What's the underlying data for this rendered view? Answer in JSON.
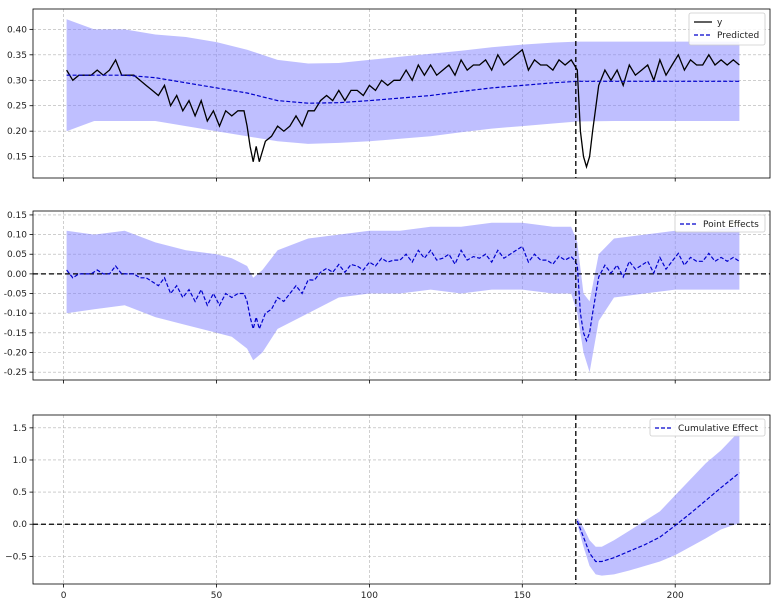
{
  "colors": {
    "band": "#8080ff",
    "band_opacity": 0.5,
    "observed": "#000000",
    "predicted": "#0000cc",
    "event_line": "#000000",
    "grid": "#b0b0b0"
  },
  "chart_data": [
    {
      "type": "line",
      "panel": "original",
      "xlim": [
        -10,
        231
      ],
      "ylim": [
        0.108,
        0.44
      ],
      "xticks": [
        0,
        50,
        100,
        150,
        200
      ],
      "xtick_labels": [],
      "yticks": [
        0.15,
        0.2,
        0.25,
        0.3,
        0.35,
        0.4
      ],
      "ytick_labels": [
        "0.15",
        "0.20",
        "0.25",
        "0.30",
        "0.35",
        "0.40"
      ],
      "grid": true,
      "legend_position": "top-right",
      "event_x": 167.5,
      "zero_line": false,
      "series": [
        {
          "name": "y",
          "style": "solid",
          "x": [
            1,
            3,
            5,
            7,
            9,
            11,
            13,
            15,
            17,
            19,
            21,
            23,
            25,
            27,
            29,
            31,
            33,
            35,
            37,
            39,
            41,
            43,
            45,
            47,
            49,
            51,
            53,
            55,
            57,
            59,
            60,
            61,
            62,
            63,
            64,
            66,
            68,
            70,
            72,
            74,
            76,
            78,
            80,
            82,
            84,
            86,
            88,
            90,
            92,
            94,
            96,
            98,
            100,
            102,
            104,
            106,
            108,
            110,
            112,
            114,
            116,
            118,
            120,
            122,
            124,
            126,
            128,
            130,
            132,
            134,
            136,
            138,
            140,
            142,
            144,
            146,
            148,
            150,
            152,
            154,
            156,
            158,
            160,
            162,
            164,
            166,
            167,
            168,
            169,
            170,
            171,
            172,
            173,
            175,
            177,
            179,
            181,
            183,
            185,
            187,
            189,
            191,
            193,
            195,
            197,
            199,
            201,
            203,
            205,
            207,
            209,
            211,
            213,
            215,
            217,
            219,
            221
          ],
          "y": [
            0.32,
            0.3,
            0.31,
            0.31,
            0.31,
            0.32,
            0.31,
            0.32,
            0.34,
            0.31,
            0.31,
            0.31,
            0.3,
            0.29,
            0.28,
            0.27,
            0.29,
            0.25,
            0.27,
            0.24,
            0.26,
            0.23,
            0.26,
            0.22,
            0.24,
            0.21,
            0.24,
            0.23,
            0.24,
            0.24,
            0.21,
            0.17,
            0.14,
            0.17,
            0.14,
            0.18,
            0.19,
            0.21,
            0.2,
            0.21,
            0.23,
            0.21,
            0.24,
            0.24,
            0.26,
            0.27,
            0.26,
            0.28,
            0.26,
            0.28,
            0.28,
            0.27,
            0.29,
            0.28,
            0.3,
            0.29,
            0.3,
            0.3,
            0.32,
            0.3,
            0.33,
            0.31,
            0.33,
            0.31,
            0.32,
            0.33,
            0.31,
            0.34,
            0.32,
            0.33,
            0.33,
            0.34,
            0.32,
            0.35,
            0.33,
            0.34,
            0.35,
            0.36,
            0.32,
            0.34,
            0.33,
            0.33,
            0.32,
            0.34,
            0.33,
            0.34,
            0.33,
            0.32,
            0.2,
            0.15,
            0.13,
            0.15,
            0.2,
            0.29,
            0.32,
            0.3,
            0.32,
            0.29,
            0.33,
            0.31,
            0.32,
            0.33,
            0.3,
            0.34,
            0.31,
            0.33,
            0.35,
            0.32,
            0.34,
            0.33,
            0.33,
            0.35,
            0.33,
            0.34,
            0.33,
            0.34,
            0.33
          ]
        },
        {
          "name": "Predicted",
          "style": "dashed",
          "x": [
            1,
            10,
            20,
            30,
            40,
            50,
            60,
            70,
            80,
            90,
            100,
            110,
            120,
            130,
            140,
            150,
            160,
            168,
            180,
            200,
            221
          ],
          "y": [
            0.31,
            0.31,
            0.31,
            0.305,
            0.295,
            0.285,
            0.275,
            0.26,
            0.255,
            0.256,
            0.26,
            0.265,
            0.27,
            0.278,
            0.285,
            0.29,
            0.295,
            0.298,
            0.298,
            0.298,
            0.298
          ]
        }
      ],
      "band": {
        "x": [
          1,
          10,
          20,
          30,
          40,
          50,
          60,
          70,
          80,
          90,
          100,
          110,
          120,
          130,
          140,
          150,
          160,
          168,
          180,
          200,
          221
        ],
        "upper": [
          0.42,
          0.4,
          0.4,
          0.39,
          0.385,
          0.375,
          0.36,
          0.34,
          0.333,
          0.334,
          0.34,
          0.346,
          0.352,
          0.358,
          0.365,
          0.37,
          0.374,
          0.376,
          0.376,
          0.376,
          0.376
        ],
        "lower": [
          0.2,
          0.22,
          0.22,
          0.22,
          0.21,
          0.2,
          0.19,
          0.18,
          0.175,
          0.177,
          0.18,
          0.185,
          0.19,
          0.198,
          0.205,
          0.21,
          0.215,
          0.219,
          0.22,
          0.22,
          0.22
        ]
      }
    },
    {
      "type": "line",
      "panel": "pointwise",
      "xlim": [
        -10,
        231
      ],
      "ylim": [
        -0.27,
        0.16
      ],
      "xticks": [
        0,
        50,
        100,
        150,
        200
      ],
      "xtick_labels": [],
      "yticks": [
        -0.25,
        -0.2,
        -0.15,
        -0.1,
        -0.05,
        0.0,
        0.05,
        0.1,
        0.15
      ],
      "ytick_labels": [
        "-0.25",
        "-0.20",
        "-0.15",
        "-0.10",
        "-0.05",
        "0.00",
        "0.05",
        "0.10",
        "0.15"
      ],
      "grid": true,
      "legend_position": "top-right",
      "event_x": 167.5,
      "zero_line": true,
      "series": [
        {
          "name": "Point Effects",
          "style": "dashed",
          "x": [
            1,
            3,
            5,
            7,
            9,
            11,
            13,
            15,
            17,
            19,
            21,
            23,
            25,
            27,
            29,
            31,
            33,
            35,
            37,
            39,
            41,
            43,
            45,
            47,
            49,
            51,
            53,
            55,
            57,
            59,
            60,
            61,
            62,
            63,
            64,
            66,
            68,
            70,
            72,
            74,
            76,
            78,
            80,
            82,
            84,
            86,
            88,
            90,
            92,
            94,
            96,
            98,
            100,
            102,
            104,
            106,
            108,
            110,
            112,
            114,
            116,
            118,
            120,
            122,
            124,
            126,
            128,
            130,
            132,
            134,
            136,
            138,
            140,
            142,
            144,
            146,
            148,
            150,
            152,
            154,
            156,
            158,
            160,
            162,
            164,
            166,
            167,
            168,
            169,
            170,
            171,
            172,
            173,
            175,
            177,
            179,
            181,
            183,
            185,
            187,
            189,
            191,
            193,
            195,
            197,
            199,
            201,
            203,
            205,
            207,
            209,
            211,
            213,
            215,
            217,
            219,
            221
          ],
          "y": [
            0.01,
            -0.01,
            0.0,
            0.0,
            0.0,
            0.01,
            0.0,
            0.0,
            0.02,
            0.0,
            0.0,
            0.0,
            -0.01,
            -0.01,
            -0.02,
            -0.03,
            -0.01,
            -0.05,
            -0.03,
            -0.06,
            -0.04,
            -0.07,
            -0.04,
            -0.08,
            -0.05,
            -0.08,
            -0.05,
            -0.06,
            -0.05,
            -0.05,
            -0.07,
            -0.11,
            -0.14,
            -0.11,
            -0.14,
            -0.1,
            -0.09,
            -0.06,
            -0.07,
            -0.05,
            -0.03,
            -0.05,
            -0.015,
            -0.016,
            0.004,
            0.014,
            0.004,
            0.024,
            0.004,
            0.024,
            0.02,
            0.01,
            0.03,
            0.02,
            0.04,
            0.03,
            0.035,
            0.035,
            0.05,
            0.03,
            0.06,
            0.04,
            0.06,
            0.035,
            0.04,
            0.05,
            0.025,
            0.06,
            0.035,
            0.044,
            0.04,
            0.05,
            0.03,
            0.06,
            0.04,
            0.05,
            0.06,
            0.07,
            0.03,
            0.05,
            0.035,
            0.035,
            0.025,
            0.045,
            0.035,
            0.044,
            0.035,
            0.022,
            -0.1,
            -0.15,
            -0.17,
            -0.15,
            -0.1,
            -0.008,
            0.022,
            0.002,
            0.022,
            -0.008,
            0.032,
            0.012,
            0.022,
            0.032,
            0.002,
            0.042,
            0.012,
            0.032,
            0.052,
            0.022,
            0.042,
            0.032,
            0.032,
            0.052,
            0.032,
            0.042,
            0.032,
            0.042,
            0.032
          ]
        }
      ],
      "band": {
        "x": [
          1,
          10,
          20,
          30,
          40,
          50,
          55,
          60,
          62,
          65,
          70,
          80,
          90,
          100,
          110,
          120,
          130,
          140,
          150,
          160,
          166,
          168,
          170,
          172,
          175,
          180,
          190,
          200,
          210,
          221
        ],
        "upper": [
          0.11,
          0.1,
          0.11,
          0.08,
          0.06,
          0.05,
          0.04,
          0.02,
          -0.01,
          0.01,
          0.06,
          0.09,
          0.1,
          0.11,
          0.11,
          0.12,
          0.12,
          0.13,
          0.13,
          0.12,
          0.12,
          0.08,
          -0.05,
          -0.07,
          0.05,
          0.09,
          0.1,
          0.11,
          0.11,
          0.12
        ],
        "lower": [
          -0.1,
          -0.09,
          -0.08,
          -0.11,
          -0.13,
          -0.15,
          -0.16,
          -0.19,
          -0.22,
          -0.2,
          -0.14,
          -0.1,
          -0.06,
          -0.05,
          -0.05,
          -0.04,
          -0.05,
          -0.04,
          -0.04,
          -0.05,
          -0.05,
          -0.1,
          -0.2,
          -0.25,
          -0.12,
          -0.06,
          -0.05,
          -0.04,
          -0.04,
          -0.04
        ]
      }
    },
    {
      "type": "line",
      "panel": "cumulative",
      "xlim": [
        -10,
        231
      ],
      "ylim": [
        -0.93,
        1.7
      ],
      "xticks": [
        0,
        50,
        100,
        150,
        200
      ],
      "xtick_labels": [
        "0",
        "50",
        "100",
        "150",
        "200"
      ],
      "yticks": [
        -0.5,
        0.0,
        0.5,
        1.0,
        1.5
      ],
      "ytick_labels": [
        "−0.5",
        "0.0",
        "0.5",
        "1.0",
        "1.5"
      ],
      "grid": true,
      "legend_position": "top-right",
      "event_x": 167.5,
      "zero_line": true,
      "series": [
        {
          "name": "Cumulative Effect",
          "style": "dashed",
          "x": [
            168,
            170,
            172,
            174,
            176,
            180,
            185,
            190,
            195,
            200,
            205,
            210,
            215,
            221
          ],
          "y": [
            0.05,
            -0.2,
            -0.45,
            -0.58,
            -0.58,
            -0.52,
            -0.42,
            -0.32,
            -0.2,
            -0.02,
            0.17,
            0.37,
            0.57,
            0.8
          ],
          "band_upper": [
            0.1,
            -0.05,
            -0.25,
            -0.35,
            -0.35,
            -0.25,
            -0.1,
            0.05,
            0.2,
            0.45,
            0.7,
            0.95,
            1.15,
            1.45
          ],
          "band_lower": [
            0.0,
            -0.35,
            -0.65,
            -0.78,
            -0.8,
            -0.78,
            -0.72,
            -0.65,
            -0.58,
            -0.48,
            -0.35,
            -0.22,
            -0.08,
            0.02
          ]
        }
      ],
      "band": {
        "x": [
          168,
          170,
          172,
          174,
          176,
          180,
          185,
          190,
          195,
          200,
          205,
          210,
          215,
          221
        ],
        "upper": [
          0.1,
          -0.05,
          -0.25,
          -0.35,
          -0.35,
          -0.25,
          -0.1,
          0.05,
          0.2,
          0.45,
          0.7,
          0.95,
          1.15,
          1.45
        ],
        "lower": [
          0.0,
          -0.35,
          -0.65,
          -0.78,
          -0.8,
          -0.78,
          -0.72,
          -0.65,
          -0.58,
          -0.48,
          -0.35,
          -0.22,
          -0.08,
          0.02
        ]
      }
    }
  ]
}
